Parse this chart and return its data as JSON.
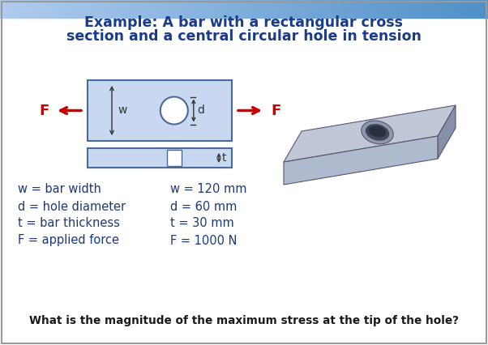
{
  "title_line1": "Example: A bar with a rectangular cross",
  "title_line2": "section and a central circular hole in tension",
  "title_color": "#1a3a8a",
  "title_fontsize": 12.5,
  "bg_color": "#ffffff",
  "border_color": "#999999",
  "diagram_rect_color": "#c8d8f0",
  "diagram_rect_edge": "#4a6a9a",
  "arrow_color": "#cc0000",
  "label_color": "#1a3a7a",
  "text_color": "#2a2a2a",
  "question_color": "#1a1a1a",
  "definitions": [
    [
      "w = bar width",
      "w = 120 mm"
    ],
    [
      "d = hole diameter",
      "d = 60 mm"
    ],
    [
      "t = bar thickness",
      "t = 30 mm"
    ],
    [
      "F = applied force",
      "F = 1000 N"
    ]
  ],
  "question": "What is the magnitude of the maximum stress at the tip of the hole?"
}
